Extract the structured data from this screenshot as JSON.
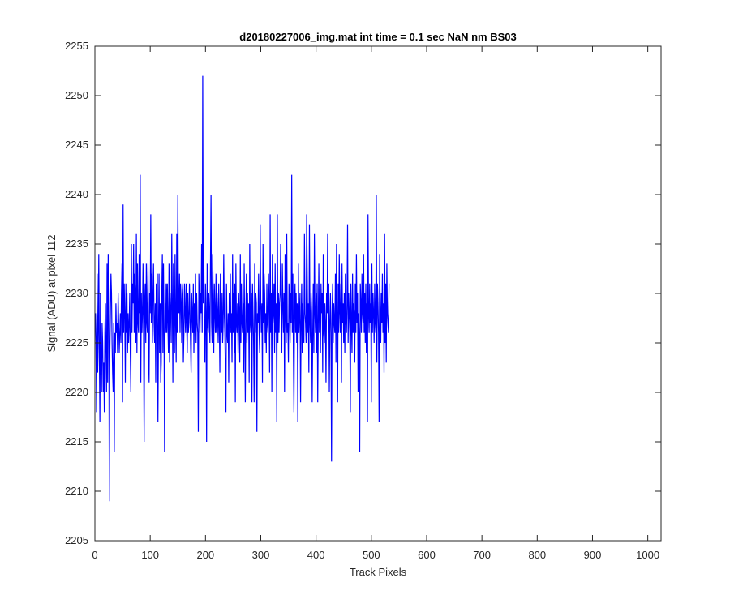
{
  "chart_data": {
    "type": "line",
    "title": "d20180227006_img.mat int time = 0.1 sec  NaN nm BS03",
    "xlabel": "Track Pixels",
    "ylabel": "Signal (ADU) at pixel 112",
    "xlim": [
      0,
      1024
    ],
    "ylim": [
      2205,
      2255
    ],
    "xticks": [
      0,
      100,
      200,
      300,
      400,
      500,
      600,
      700,
      800,
      900,
      1000
    ],
    "yticks": [
      2205,
      2210,
      2215,
      2220,
      2225,
      2230,
      2235,
      2240,
      2245,
      2250,
      2255
    ],
    "grid": false,
    "series": [
      {
        "color": "#0000ff",
        "x_start": 1,
        "x_step": 1,
        "values": [
          2228,
          2225,
          2218,
          2232,
          2222,
          2226,
          2234,
          2224,
          2217,
          2230,
          2222,
          2220,
          2227,
          2225,
          2220,
          2223,
          2218,
          2226,
          2229,
          2224,
          2220,
          2233,
          2221,
          2234,
          2232,
          2209,
          2224,
          2228,
          2232,
          2230,
          2225,
          2222,
          2220,
          2227,
          2214,
          2226,
          2224,
          2229,
          2226,
          2227,
          2224,
          2230,
          2227,
          2224,
          2226,
          2228,
          2225,
          2230,
          2233,
          2219,
          2239,
          2226,
          2231,
          2228,
          2221,
          2231,
          2226,
          2230,
          2224,
          2228,
          2225,
          2227,
          2230,
          2224,
          2220,
          2235,
          2226,
          2231,
          2229,
          2235,
          2226,
          2232,
          2230,
          2225,
          2236,
          2224,
          2233,
          2227,
          2226,
          2234,
          2228,
          2242,
          2221,
          2230,
          2226,
          2228,
          2233,
          2226,
          2215,
          2229,
          2231,
          2225,
          2233,
          2227,
          2226,
          2233,
          2224,
          2221,
          2230,
          2228,
          2238,
          2227,
          2232,
          2225,
          2230,
          2233,
          2227,
          2225,
          2229,
          2221,
          2231,
          2228,
          2232,
          2217,
          2226,
          2232,
          2224,
          2229,
          2221,
          2223,
          2230,
          2234,
          2224,
          2233,
          2226,
          2214,
          2229,
          2226,
          2231,
          2226,
          2231,
          2227,
          2224,
          2233,
          2223,
          2230,
          2228,
          2225,
          2236,
          2229,
          2221,
          2233,
          2230,
          2224,
          2234,
          2227,
          2223,
          2236,
          2226,
          2240,
          2229,
          2228,
          2232,
          2226,
          2231,
          2229,
          2225,
          2231,
          2230,
          2223,
          2226,
          2231,
          2228,
          2226,
          2231,
          2227,
          2224,
          2230,
          2226,
          2227,
          2231,
          2228,
          2225,
          2222,
          2230,
          2228,
          2226,
          2231,
          2224,
          2229,
          2226,
          2232,
          2225,
          2230,
          2227,
          2226,
          2216,
          2232,
          2229,
          2226,
          2230,
          2228,
          2235,
          2226,
          2252,
          2229,
          2234,
          2226,
          2223,
          2231,
          2228,
          2215,
          2233,
          2227,
          2226,
          2230,
          2228,
          2225,
          2233,
          2240,
          2227,
          2225,
          2234,
          2229,
          2224,
          2231,
          2228,
          2226,
          2232,
          2226,
          2230,
          2228,
          2225,
          2231,
          2227,
          2222,
          2232,
          2229,
          2226,
          2230,
          2225,
          2227,
          2234,
          2228,
          2226,
          2222,
          2218,
          2231,
          2226,
          2225,
          2228,
          2221,
          2230,
          2227,
          2232,
          2226,
          2228,
          2223,
          2234,
          2226,
          2230,
          2224,
          2231,
          2219,
          2233,
          2227,
          2226,
          2229,
          2224,
          2230,
          2228,
          2223,
          2234,
          2225,
          2231,
          2227,
          2226,
          2229,
          2222,
          2233,
          2226,
          2219,
          2228,
          2232,
          2225,
          2230,
          2226,
          2229,
          2221,
          2235,
          2227,
          2226,
          2230,
          2219,
          2231,
          2228,
          2225,
          2219,
          2233,
          2226,
          2230,
          2229,
          2216,
          2228,
          2227,
          2232,
          2226,
          2224,
          2237,
          2229,
          2226,
          2229,
          2221,
          2235,
          2227,
          2232,
          2230,
          2225,
          2228,
          2224,
          2231,
          2227,
          2226,
          2232,
          2229,
          2222,
          2238,
          2226,
          2230,
          2220,
          2234,
          2227,
          2228,
          2231,
          2224,
          2233,
          2226,
          2229,
          2217,
          2238,
          2225,
          2230,
          2226,
          2229,
          2230,
          2235,
          2227,
          2224,
          2233,
          2229,
          2226,
          2230,
          2220,
          2234,
          2228,
          2225,
          2236,
          2226,
          2227,
          2223,
          2231,
          2229,
          2225,
          2230,
          2227,
          2242,
          2226,
          2232,
          2224,
          2218,
          2228,
          2231,
          2226,
          2230,
          2225,
          2229,
          2217,
          2233,
          2226,
          2228,
          2230,
          2219,
          2227,
          2231,
          2224,
          2229,
          2226,
          2225,
          2236,
          2228,
          2227,
          2225,
          2238,
          2232,
          2226,
          2229,
          2222,
          2237,
          2227,
          2225,
          2230,
          2228,
          2219,
          2226,
          2231,
          2224,
          2236,
          2228,
          2226,
          2230,
          2224,
          2231,
          2219,
          2227,
          2233,
          2226,
          2229,
          2224,
          2231,
          2228,
          2230,
          2222,
          2234,
          2226,
          2225,
          2229,
          2227,
          2221,
          2230,
          2228,
          2236,
          2226,
          2231,
          2220,
          2227,
          2230,
          2226,
          2213,
          2228,
          2231,
          2225,
          2229,
          2227,
          2226,
          2232,
          2223,
          2235,
          2228,
          2219,
          2231,
          2226,
          2234,
          2228,
          2226,
          2231,
          2221,
          2233,
          2227,
          2229,
          2225,
          2230,
          2224,
          2232,
          2227,
          2226,
          2229,
          2237,
          2225,
          2230,
          2228,
          2226,
          2218,
          2231,
          2227,
          2224,
          2232,
          2226,
          2229,
          2228,
          2223,
          2231,
          2226,
          2234,
          2227,
          2230,
          2220,
          2228,
          2226,
          2214,
          2231,
          2229,
          2226,
          2232,
          2228,
          2227,
          2234,
          2226,
          2230,
          2225,
          2231,
          2224,
          2229,
          2217,
          2238,
          2228,
          2226,
          2231,
          2227,
          2229,
          2219,
          2233,
          2226,
          2230,
          2228,
          2225,
          2231,
          2227,
          2226,
          2240,
          2223,
          2231,
          2229,
          2226,
          2217,
          2234,
          2228,
          2225,
          2230,
          2227,
          2232,
          2226,
          2229,
          2222,
          2236,
          2225,
          2231,
          2223,
          2233,
          2228,
          2227,
          2226,
          2231
        ]
      }
    ]
  }
}
